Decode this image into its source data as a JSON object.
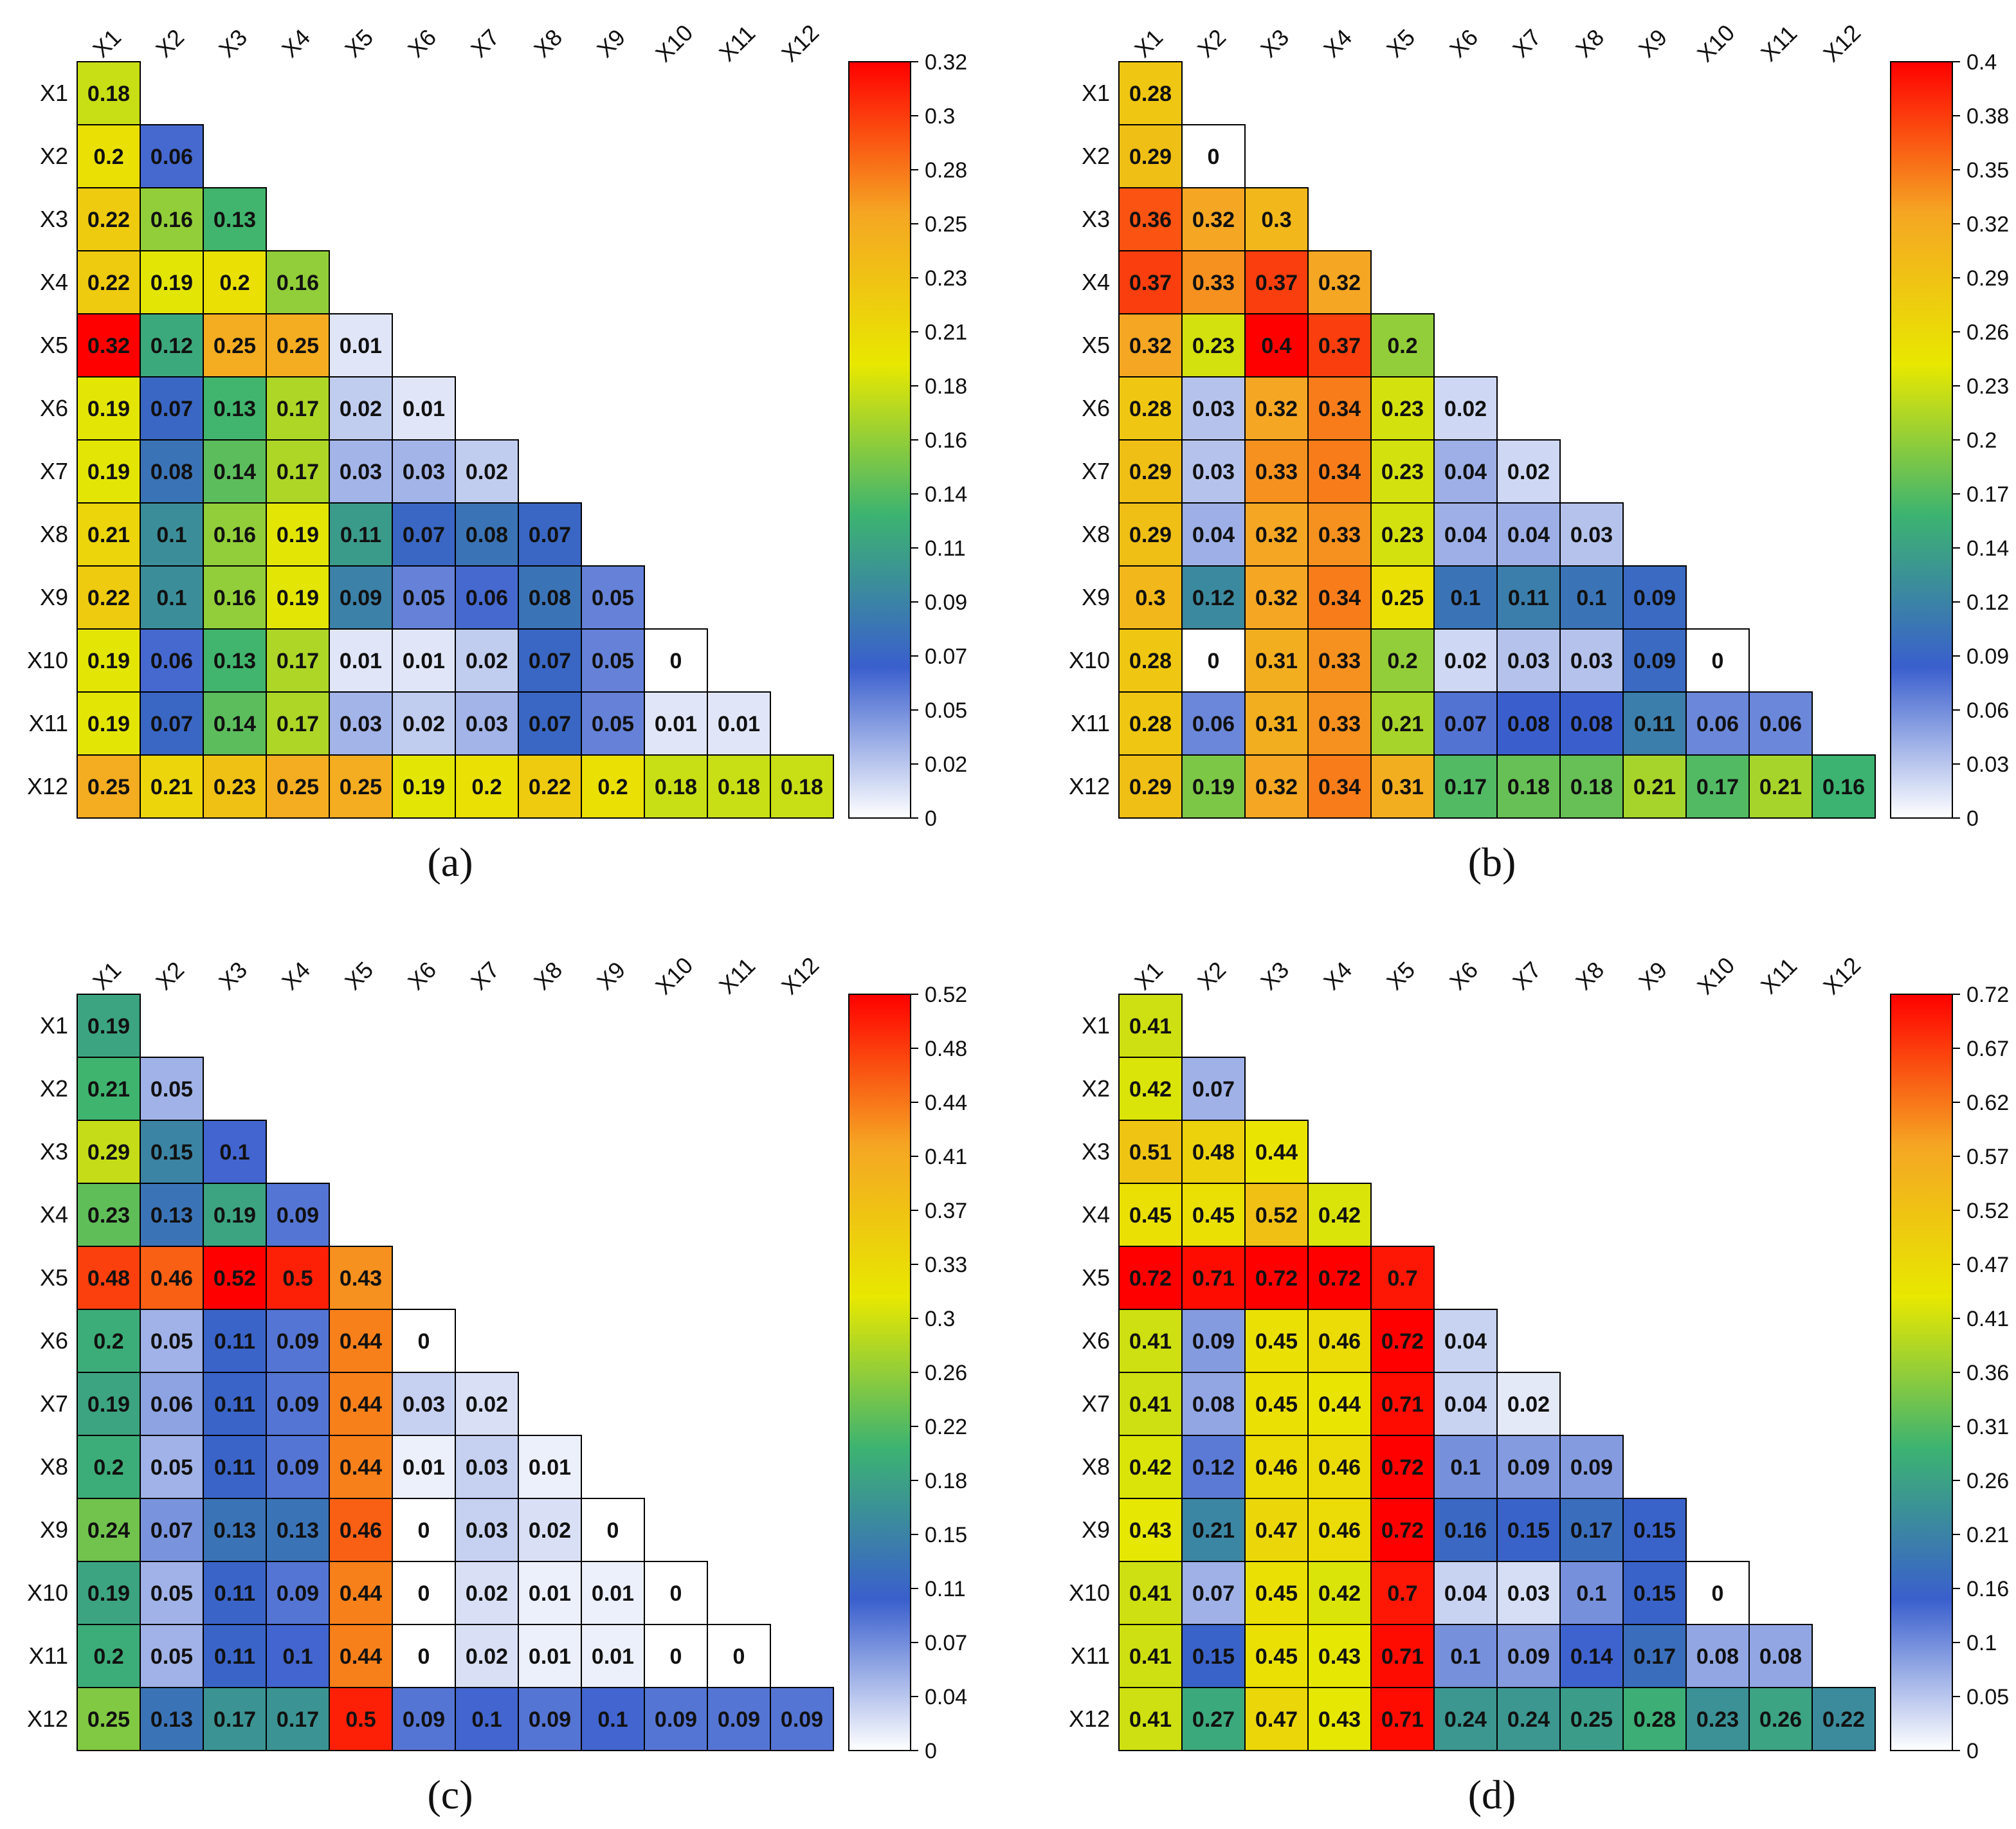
{
  "variables": [
    "X1",
    "X2",
    "X3",
    "X4",
    "X5",
    "X6",
    "X7",
    "X8",
    "X9",
    "X10",
    "X11",
    "X12"
  ],
  "colorscale": [
    "#ffffff",
    "#3a5fcd",
    "#3cb371",
    "#e8e800",
    "#f5a623",
    "#ff0000"
  ],
  "chart_data": [
    {
      "type": "heatmap",
      "label": "(a)",
      "layout": "lower-triangular",
      "colorbar_ticks": [
        "0",
        "0.02",
        "0.05",
        "0.07",
        "0.09",
        "0.11",
        "0.14",
        "0.16",
        "0.18",
        "0.21",
        "0.23",
        "0.25",
        "0.28",
        "0.3",
        "0.32"
      ],
      "range": [
        0,
        0.32
      ],
      "rows": [
        [
          0.18
        ],
        [
          0.2,
          0.06
        ],
        [
          0.22,
          0.16,
          0.13
        ],
        [
          0.22,
          0.19,
          0.2,
          0.16
        ],
        [
          0.32,
          0.12,
          0.25,
          0.25,
          0.01
        ],
        [
          0.19,
          0.07,
          0.13,
          0.17,
          0.02,
          0.01
        ],
        [
          0.19,
          0.08,
          0.14,
          0.17,
          0.03,
          0.03,
          0.02
        ],
        [
          0.21,
          0.1,
          0.16,
          0.19,
          0.11,
          0.07,
          0.08,
          0.07
        ],
        [
          0.22,
          0.1,
          0.16,
          0.19,
          0.09,
          0.05,
          0.06,
          0.08,
          0.05
        ],
        [
          0.19,
          0.06,
          0.13,
          0.17,
          0.01,
          0.01,
          0.02,
          0.07,
          0.05,
          0
        ],
        [
          0.19,
          0.07,
          0.14,
          0.17,
          0.03,
          0.02,
          0.03,
          0.07,
          0.05,
          0.01,
          0.01
        ],
        [
          0.25,
          0.21,
          0.23,
          0.25,
          0.25,
          0.19,
          0.2,
          0.22,
          0.2,
          0.18,
          0.18,
          0.18
        ]
      ]
    },
    {
      "type": "heatmap",
      "label": "(b)",
      "layout": "lower-triangular",
      "colorbar_ticks": [
        "0",
        "0.03",
        "0.06",
        "0.09",
        "0.12",
        "0.14",
        "0.17",
        "0.2",
        "0.23",
        "0.26",
        "0.29",
        "0.32",
        "0.35",
        "0.38",
        "0.4"
      ],
      "range": [
        0,
        0.4
      ],
      "rows": [
        [
          0.28
        ],
        [
          0.29,
          0
        ],
        [
          0.36,
          0.32,
          0.3
        ],
        [
          0.37,
          0.33,
          0.37,
          0.32
        ],
        [
          0.32,
          0.23,
          0.4,
          0.37,
          0.2
        ],
        [
          0.28,
          0.03,
          0.32,
          0.34,
          0.23,
          0.02
        ],
        [
          0.29,
          0.03,
          0.33,
          0.34,
          0.23,
          0.04,
          0.02
        ],
        [
          0.29,
          0.04,
          0.32,
          0.33,
          0.23,
          0.04,
          0.04,
          0.03
        ],
        [
          0.3,
          0.12,
          0.32,
          0.34,
          0.25,
          0.1,
          0.11,
          0.1,
          0.09
        ],
        [
          0.28,
          0,
          0.31,
          0.33,
          0.2,
          0.02,
          0.03,
          0.03,
          0.09,
          0
        ],
        [
          0.28,
          0.06,
          0.31,
          0.33,
          0.21,
          0.07,
          0.08,
          0.08,
          0.11,
          0.06,
          0.06
        ],
        [
          0.29,
          0.19,
          0.32,
          0.34,
          0.31,
          0.17,
          0.18,
          0.18,
          0.21,
          0.17,
          0.21,
          0.16
        ]
      ]
    },
    {
      "type": "heatmap",
      "label": "(c)",
      "layout": "lower-triangular",
      "colorbar_ticks": [
        "0",
        "0.04",
        "0.07",
        "0.11",
        "0.15",
        "0.18",
        "0.22",
        "0.26",
        "0.3",
        "0.33",
        "0.37",
        "0.41",
        "0.44",
        "0.48",
        "0.52"
      ],
      "range": [
        0,
        0.52
      ],
      "rows": [
        [
          0.19
        ],
        [
          0.21,
          0.05
        ],
        [
          0.29,
          0.15,
          0.1
        ],
        [
          0.23,
          0.13,
          0.19,
          0.09
        ],
        [
          0.48,
          0.46,
          0.52,
          0.5,
          0.43
        ],
        [
          0.2,
          0.05,
          0.11,
          0.09,
          0.44,
          0
        ],
        [
          0.19,
          0.06,
          0.11,
          0.09,
          0.44,
          0.03,
          0.02
        ],
        [
          0.2,
          0.05,
          0.11,
          0.09,
          0.44,
          0.01,
          0.03,
          0.01
        ],
        [
          0.24,
          0.07,
          0.13,
          0.13,
          0.46,
          0,
          0.03,
          0.02,
          0
        ],
        [
          0.19,
          0.05,
          0.11,
          0.09,
          0.44,
          0,
          0.02,
          0.01,
          0.01,
          0
        ],
        [
          0.2,
          0.05,
          0.11,
          0.1,
          0.44,
          0,
          0.02,
          0.01,
          0.01,
          0,
          0
        ],
        [
          0.25,
          0.13,
          0.17,
          0.17,
          0.5,
          0.09,
          0.1,
          0.09,
          0.1,
          0.09,
          0.09,
          0.09
        ]
      ]
    },
    {
      "type": "heatmap",
      "label": "(d)",
      "layout": "lower-triangular",
      "colorbar_ticks": [
        "0",
        "0.05",
        "0.1",
        "0.16",
        "0.21",
        "0.26",
        "0.31",
        "0.36",
        "0.41",
        "0.47",
        "0.52",
        "0.57",
        "0.62",
        "0.67",
        "0.72"
      ],
      "range": [
        0,
        0.72
      ],
      "rows": [
        [
          0.41
        ],
        [
          0.42,
          0.07
        ],
        [
          0.51,
          0.48,
          0.44
        ],
        [
          0.45,
          0.45,
          0.52,
          0.42
        ],
        [
          0.72,
          0.71,
          0.72,
          0.72,
          0.7
        ],
        [
          0.41,
          0.09,
          0.45,
          0.46,
          0.72,
          0.04
        ],
        [
          0.41,
          0.08,
          0.45,
          0.44,
          0.71,
          0.04,
          0.02
        ],
        [
          0.42,
          0.12,
          0.46,
          0.46,
          0.72,
          0.1,
          0.09,
          0.09
        ],
        [
          0.43,
          0.21,
          0.47,
          0.46,
          0.72,
          0.16,
          0.15,
          0.17,
          0.15
        ],
        [
          0.41,
          0.07,
          0.45,
          0.42,
          0.7,
          0.04,
          0.03,
          0.1,
          0.15,
          0
        ],
        [
          0.41,
          0.15,
          0.45,
          0.43,
          0.71,
          0.1,
          0.09,
          0.14,
          0.17,
          0.08,
          0.08
        ],
        [
          0.41,
          0.27,
          0.47,
          0.43,
          0.71,
          0.24,
          0.24,
          0.25,
          0.28,
          0.23,
          0.26,
          0.22
        ]
      ]
    }
  ]
}
